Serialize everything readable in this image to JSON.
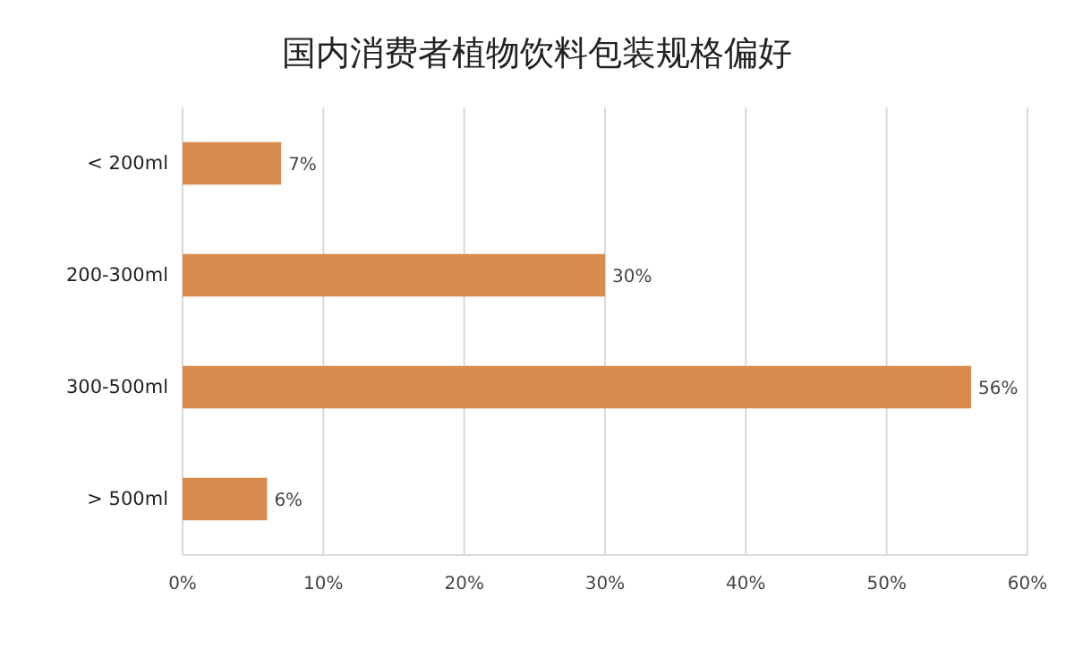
{
  "chart_data": {
    "type": "bar",
    "orientation": "horizontal",
    "title": "国内消费者植物饮料包装规格偏好",
    "categories": [
      "< 200ml",
      "200-300ml",
      "300-500ml",
      "> 500ml"
    ],
    "values": [
      7,
      30,
      56,
      6
    ],
    "value_labels": [
      "7%",
      "30%",
      "56%",
      "6%"
    ],
    "color": "#d78b4f",
    "xlim": [
      0,
      60
    ],
    "xticks": [
      {
        "value": 0,
        "label": "0%"
      },
      {
        "value": 10,
        "label": "10%"
      },
      {
        "value": 20,
        "label": "20%"
      },
      {
        "value": 30,
        "label": "30%"
      },
      {
        "value": 40,
        "label": "40%"
      },
      {
        "value": 50,
        "label": "50%"
      },
      {
        "value": 60,
        "label": "60%"
      }
    ],
    "grid": "x"
  }
}
